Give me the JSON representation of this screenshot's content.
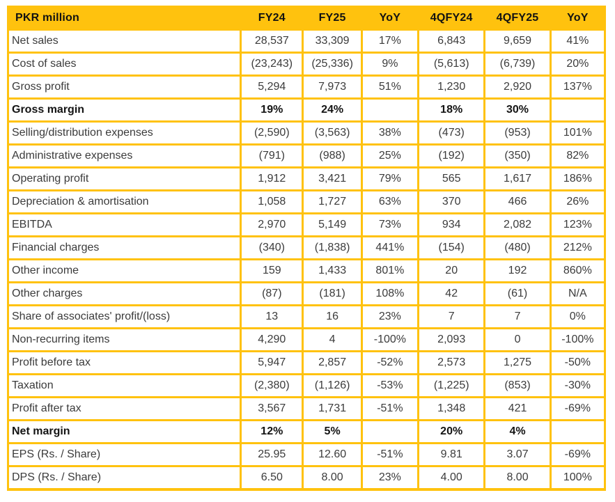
{
  "colors": {
    "accent": "#FFC20E",
    "header_text": "#121212",
    "body_text": "#3B3B3B"
  },
  "table": {
    "header": [
      "PKR million",
      "FY24",
      "FY25",
      "YoY",
      "4QFY24",
      "4QFY25",
      "YoY"
    ],
    "rows": [
      {
        "label": "Net sales",
        "values": [
          "28,537",
          "33,309",
          "17%",
          "6,843",
          "9,659",
          "41%"
        ],
        "bold": false
      },
      {
        "label": "Cost of sales",
        "values": [
          "(23,243)",
          "(25,336)",
          "9%",
          "(5,613)",
          "(6,739)",
          "20%"
        ],
        "bold": false
      },
      {
        "label": "Gross profit",
        "values": [
          "5,294",
          "7,973",
          "51%",
          "1,230",
          "2,920",
          "137%"
        ],
        "bold": false
      },
      {
        "label": "Gross margin",
        "values": [
          "19%",
          "24%",
          "",
          "18%",
          "30%",
          ""
        ],
        "bold": true
      },
      {
        "label": "Selling/distribution expenses",
        "values": [
          "(2,590)",
          "(3,563)",
          "38%",
          "(473)",
          "(953)",
          "101%"
        ],
        "bold": false
      },
      {
        "label": "Administrative expenses",
        "values": [
          "(791)",
          "(988)",
          "25%",
          "(192)",
          "(350)",
          "82%"
        ],
        "bold": false
      },
      {
        "label": "Operating profit",
        "values": [
          "1,912",
          "3,421",
          "79%",
          "565",
          "1,617",
          "186%"
        ],
        "bold": false
      },
      {
        "label": "Depreciation & amortisation",
        "values": [
          "1,058",
          "1,727",
          "63%",
          "370",
          "466",
          "26%"
        ],
        "bold": false
      },
      {
        "label": "EBITDA",
        "values": [
          "2,970",
          "5,149",
          "73%",
          "934",
          "2,082",
          "123%"
        ],
        "bold": false
      },
      {
        "label": "Financial charges",
        "values": [
          "(340)",
          "(1,838)",
          "441%",
          "(154)",
          "(480)",
          "212%"
        ],
        "bold": false
      },
      {
        "label": "Other income",
        "values": [
          "159",
          "1,433",
          "801%",
          "20",
          "192",
          "860%"
        ],
        "bold": false
      },
      {
        "label": "Other charges",
        "values": [
          "(87)",
          "(181)",
          "108%",
          "42",
          "(61)",
          "N/A"
        ],
        "bold": false
      },
      {
        "label": "Share of associates' profit/(loss)",
        "values": [
          "13",
          "16",
          "23%",
          "7",
          "7",
          "0%"
        ],
        "bold": false
      },
      {
        "label": "Non-recurring items",
        "values": [
          "4,290",
          "4",
          "-100%",
          "2,093",
          "0",
          "-100%"
        ],
        "bold": false
      },
      {
        "label": "Profit before tax",
        "values": [
          "5,947",
          "2,857",
          "-52%",
          "2,573",
          "1,275",
          "-50%"
        ],
        "bold": false
      },
      {
        "label": "Taxation",
        "values": [
          "(2,380)",
          "(1,126)",
          "-53%",
          "(1,225)",
          "(853)",
          "-30%"
        ],
        "bold": false
      },
      {
        "label": "Profit after tax",
        "values": [
          "3,567",
          "1,731",
          "-51%",
          "1,348",
          "421",
          "-69%"
        ],
        "bold": false
      },
      {
        "label": "Net margin",
        "values": [
          "12%",
          "5%",
          "",
          "20%",
          "4%",
          ""
        ],
        "bold": true
      },
      {
        "label": "EPS (Rs. / Share)",
        "values": [
          "25.95",
          "12.60",
          "-51%",
          "9.81",
          "3.07",
          "-69%"
        ],
        "bold": false
      },
      {
        "label": "DPS (Rs. / Share)",
        "values": [
          "6.50",
          "8.00",
          "23%",
          "4.00",
          "8.00",
          "100%"
        ],
        "bold": false
      }
    ]
  }
}
